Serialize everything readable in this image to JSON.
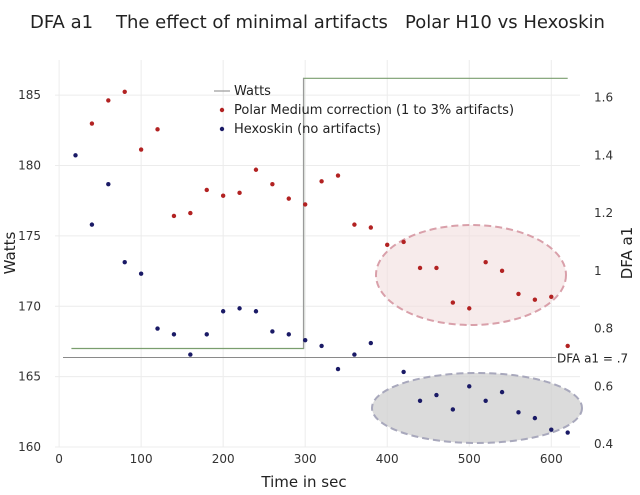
{
  "chart_data": {
    "type": "scatter",
    "title": "DFA a1    The effect of minimal artifacts   Polar H10 vs Hexoskin",
    "xlabel": "Time in sec",
    "ylabel_left": "Watts",
    "ylabel_right": "DFA a1",
    "xlim": [
      -5,
      635
    ],
    "ylim_left": [
      160,
      187.5
    ],
    "ylim_right": [
      0.39,
      1.73
    ],
    "x_ticks": [
      "0",
      "100",
      "200",
      "300",
      "400",
      "500",
      "600"
    ],
    "y_ticks_left": [
      "160",
      "165",
      "170",
      "175",
      "180",
      "185"
    ],
    "y_ticks_right": [
      "0.4",
      "0.6",
      "0.8",
      "1",
      "1.2",
      "1.4",
      "1.6"
    ],
    "grid": true,
    "legend_position": "top-center",
    "threshold_label": "DFA a1 = .7",
    "threshold_value": 0.7,
    "series": [
      {
        "name": "Watts",
        "kind": "step-line",
        "axis": "left",
        "color": "#7a9e6e",
        "x": [
          15,
          298,
          298,
          620
        ],
        "y": [
          167,
          167,
          186.2,
          186.2
        ]
      },
      {
        "name": "Polar Medium correction (1 to 3% artifacts)",
        "kind": "points",
        "axis": "right",
        "color": "#b22222",
        "x": [
          40,
          60,
          80,
          100,
          120,
          140,
          160,
          180,
          200,
          220,
          240,
          260,
          280,
          300,
          320,
          340,
          360,
          380,
          400,
          420,
          440,
          460,
          480,
          500,
          520,
          540,
          560,
          580,
          600,
          620
        ],
        "y": [
          1.51,
          1.59,
          1.62,
          1.42,
          1.49,
          1.19,
          1.2,
          1.28,
          1.26,
          1.27,
          1.35,
          1.3,
          1.25,
          1.23,
          1.31,
          1.33,
          1.16,
          1.15,
          1.09,
          1.1,
          1.01,
          1.01,
          0.89,
          0.87,
          1.03,
          1.0,
          0.92,
          0.9,
          0.91,
          0.74
        ]
      },
      {
        "name": "Hexoskin (no artifacts)",
        "kind": "points",
        "axis": "right",
        "color": "#1a1a66",
        "x": [
          20,
          40,
          60,
          80,
          100,
          120,
          140,
          160,
          180,
          200,
          220,
          240,
          260,
          280,
          300,
          320,
          340,
          360,
          380,
          420,
          440,
          460,
          480,
          500,
          520,
          540,
          560,
          580,
          600,
          620
        ],
        "y": [
          1.4,
          1.16,
          1.3,
          1.03,
          0.99,
          0.8,
          0.78,
          0.71,
          0.78,
          0.86,
          0.87,
          0.86,
          0.79,
          0.78,
          0.76,
          0.74,
          0.66,
          0.71,
          0.75,
          0.65,
          0.55,
          0.57,
          0.52,
          0.6,
          0.55,
          0.58,
          0.51,
          0.49,
          0.45,
          0.44
        ]
      }
    ]
  }
}
